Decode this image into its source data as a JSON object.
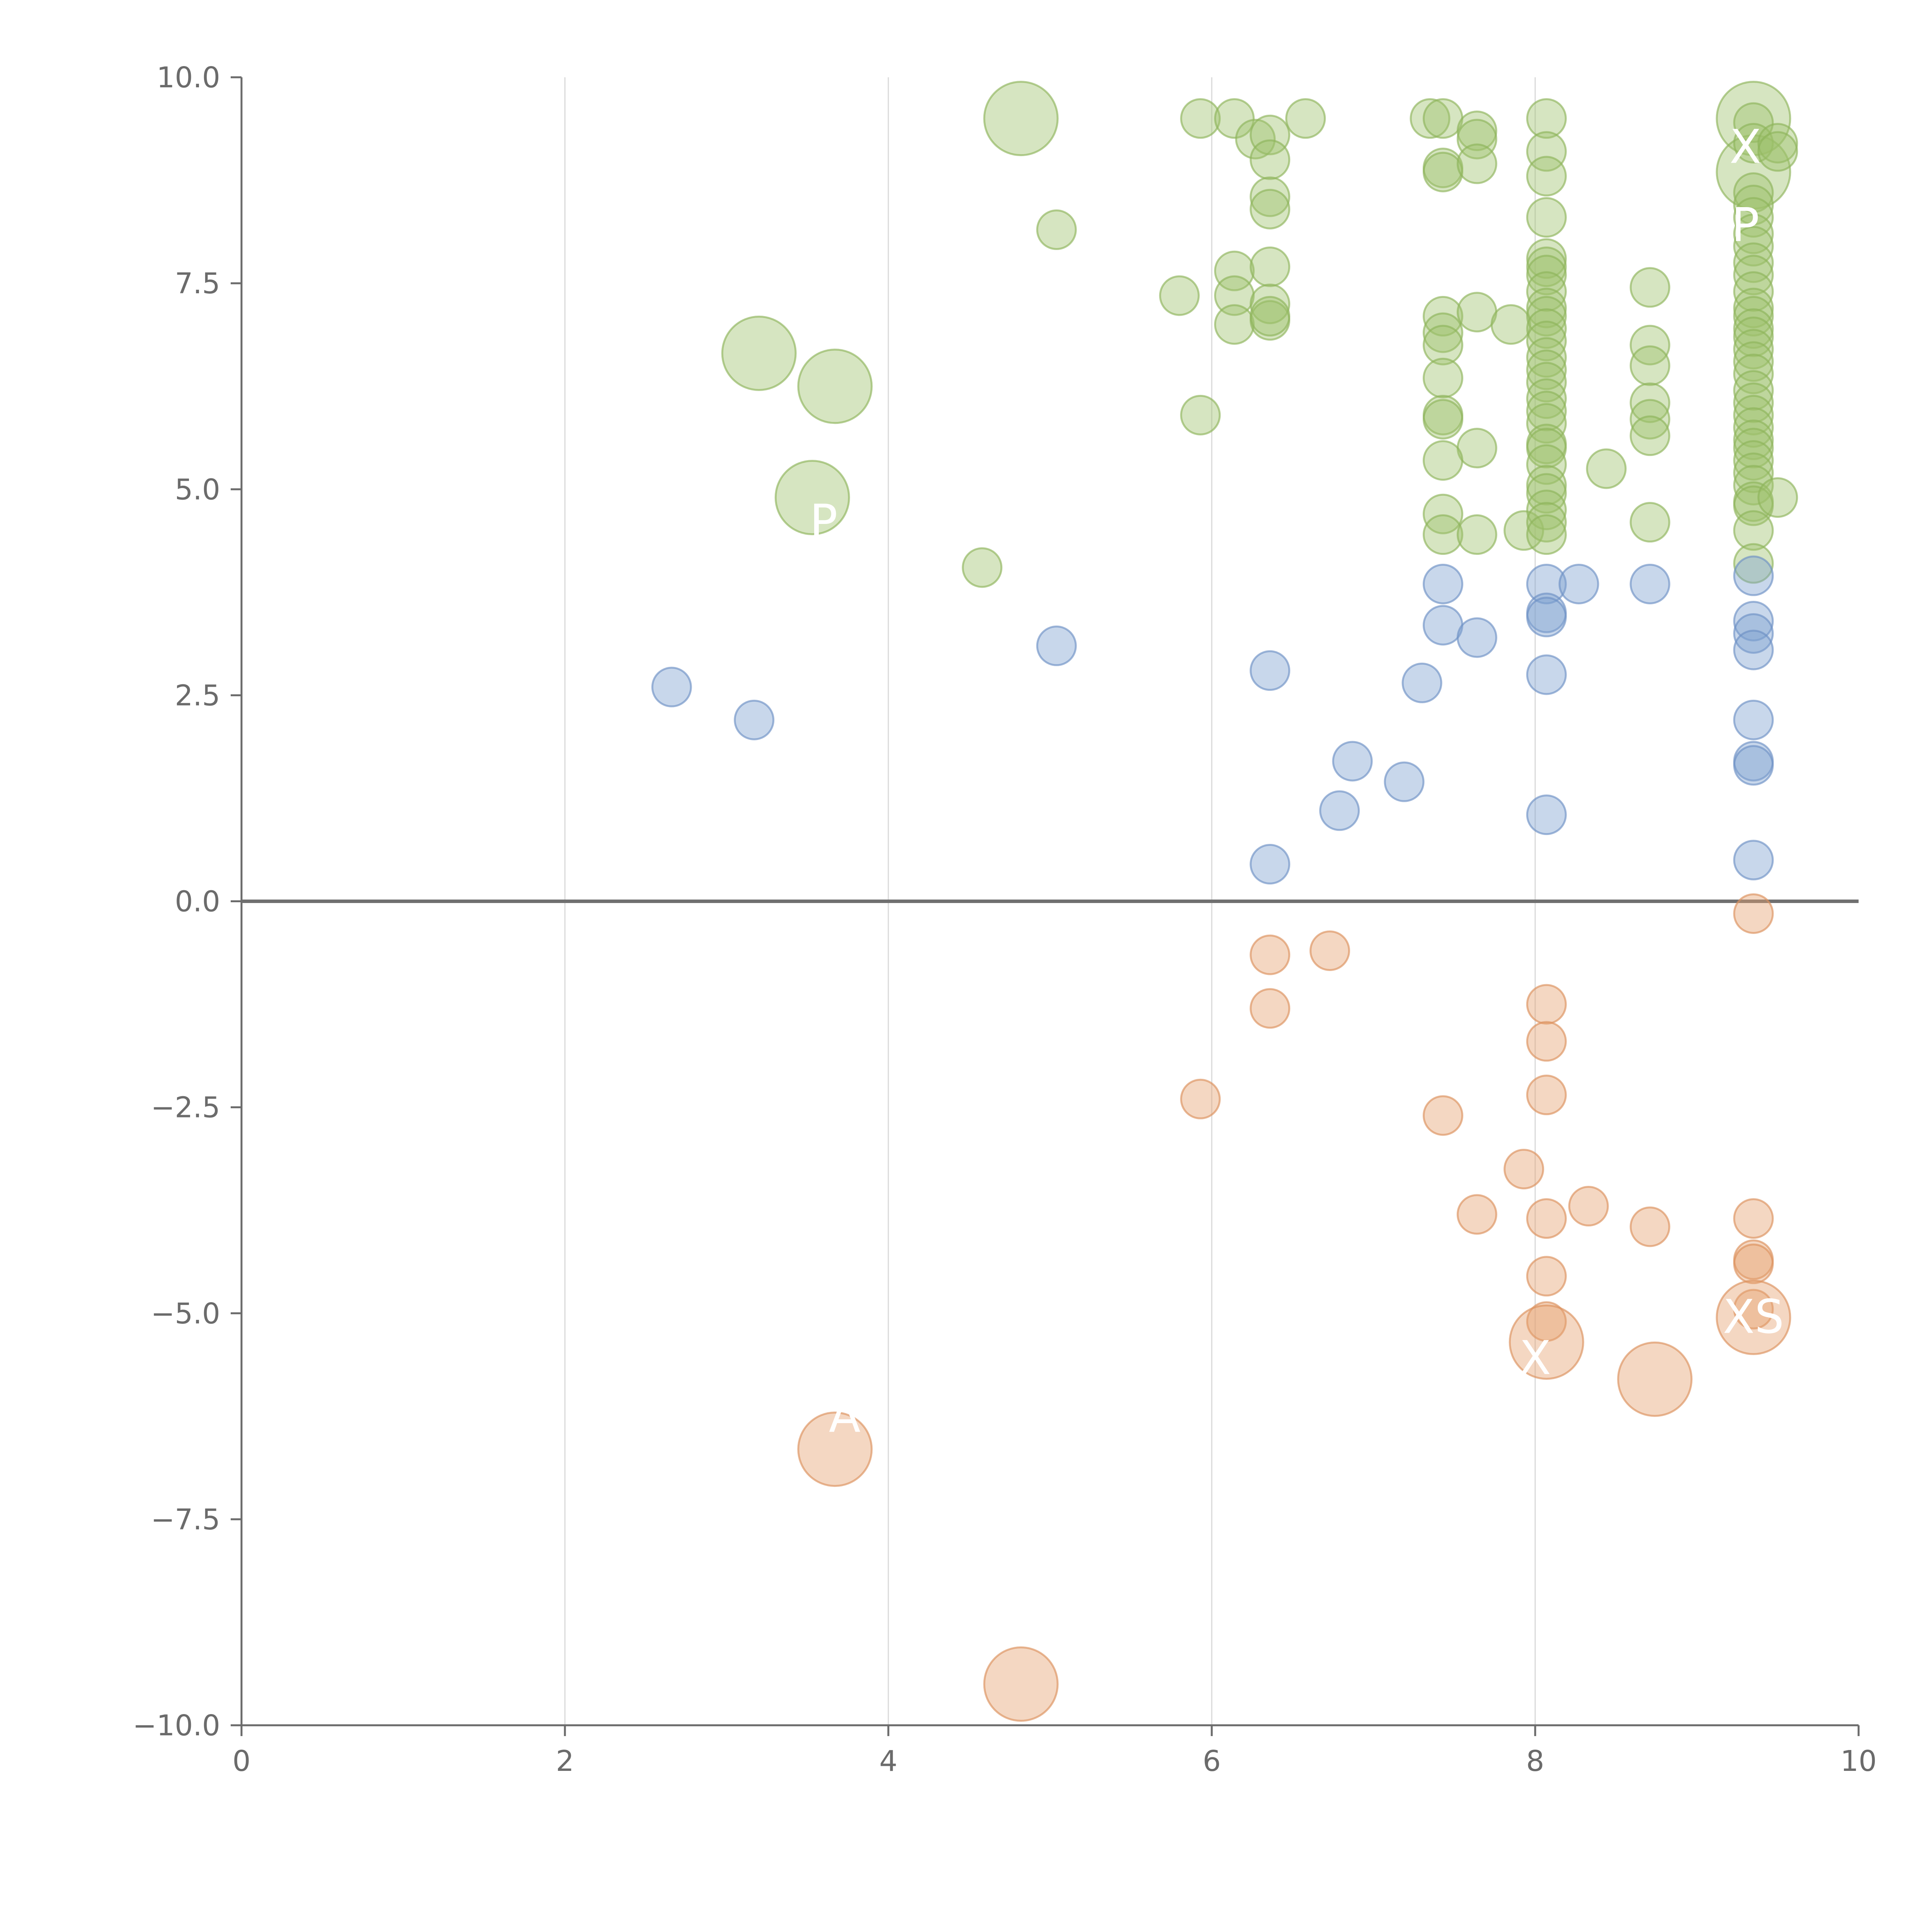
{
  "chart_data": {
    "type": "scatter",
    "title": "",
    "xlabel": "",
    "ylabel": "",
    "xlim": [
      0,
      10
    ],
    "ylim": [
      -10,
      10
    ],
    "x_ticks": [
      "0",
      "2",
      "4",
      "6",
      "8",
      "10"
    ],
    "y_ticks": [
      "10.0",
      "7.5",
      "5.0",
      "2.5",
      "0.0",
      "−2.5",
      "−5.0",
      "−7.5",
      "−10.0"
    ],
    "x_tick_values": [
      0,
      2,
      4,
      6,
      8,
      10
    ],
    "y_tick_values": [
      10,
      7.5,
      5,
      2.5,
      0,
      -2.5,
      -5,
      -7.5,
      -10
    ],
    "grid": "vertical",
    "zero_line": true,
    "legend": "none",
    "colors": {
      "green_fill": "#9dc16b",
      "green_stroke": "#8db35a",
      "blue_fill": "#7b9fcf",
      "blue_stroke": "#6d91c4",
      "orange_fill": "#e4a06e",
      "orange_stroke": "#db915c"
    },
    "series": [
      {
        "name": "green",
        "color": "green",
        "points": [
          [
            4.82,
            9.5,
            2
          ],
          [
            5.04,
            8.15,
            1
          ],
          [
            5.93,
            9.5,
            1
          ],
          [
            6.14,
            9.5,
            1
          ],
          [
            6.27,
            9.25,
            1
          ],
          [
            6.36,
            9.3,
            1
          ],
          [
            6.36,
            9.0,
            1
          ],
          [
            6.58,
            9.5,
            1
          ],
          [
            6.36,
            8.55,
            1
          ],
          [
            6.36,
            8.4,
            1
          ],
          [
            6.14,
            7.65,
            1
          ],
          [
            6.36,
            7.7,
            1
          ],
          [
            5.8,
            7.35,
            1
          ],
          [
            6.14,
            7.35,
            1
          ],
          [
            6.36,
            7.25,
            1
          ],
          [
            6.14,
            7.0,
            1
          ],
          [
            6.36,
            7.05,
            1
          ],
          [
            6.36,
            7.1,
            1
          ],
          [
            5.93,
            5.9,
            1
          ],
          [
            4.58,
            4.05,
            1
          ],
          [
            3.2,
            6.65,
            2
          ],
          [
            3.67,
            6.25,
            2
          ],
          [
            3.53,
            4.9,
            2
          ],
          [
            7.35,
            9.5,
            1
          ],
          [
            7.43,
            9.5,
            1
          ],
          [
            7.43,
            8.9,
            1
          ],
          [
            7.43,
            8.85,
            1
          ],
          [
            7.64,
            9.35,
            1
          ],
          [
            7.64,
            9.25,
            1
          ],
          [
            7.64,
            8.95,
            1
          ],
          [
            7.43,
            7.1,
            1
          ],
          [
            7.43,
            6.9,
            1
          ],
          [
            7.43,
            6.75,
            1
          ],
          [
            7.64,
            7.15,
            1
          ],
          [
            7.85,
            7.0,
            1
          ],
          [
            7.43,
            6.35,
            1
          ],
          [
            7.43,
            5.9,
            1
          ],
          [
            7.43,
            5.85,
            1
          ],
          [
            7.64,
            5.5,
            1
          ],
          [
            7.43,
            5.35,
            1
          ],
          [
            7.43,
            4.7,
            1
          ],
          [
            7.43,
            4.45,
            1
          ],
          [
            7.64,
            4.45,
            1
          ],
          [
            7.93,
            4.5,
            1
          ],
          [
            8.07,
            9.5,
            1
          ],
          [
            8.07,
            9.1,
            1
          ],
          [
            8.07,
            8.8,
            1
          ],
          [
            8.07,
            8.3,
            1
          ],
          [
            8.07,
            7.8,
            1
          ],
          [
            8.07,
            7.7,
            1
          ],
          [
            8.07,
            7.6,
            1
          ],
          [
            8.07,
            7.4,
            1
          ],
          [
            8.07,
            7.2,
            1
          ],
          [
            8.07,
            7.1,
            1
          ],
          [
            8.07,
            6.95,
            1
          ],
          [
            8.07,
            6.8,
            1
          ],
          [
            8.07,
            6.6,
            1
          ],
          [
            8.07,
            6.45,
            1
          ],
          [
            8.07,
            6.3,
            1
          ],
          [
            8.07,
            6.1,
            1
          ],
          [
            8.07,
            5.95,
            1
          ],
          [
            8.07,
            5.8,
            1
          ],
          [
            8.07,
            5.55,
            1
          ],
          [
            8.07,
            5.5,
            1
          ],
          [
            8.07,
            5.3,
            1
          ],
          [
            8.07,
            5.05,
            1
          ],
          [
            8.07,
            4.95,
            1
          ],
          [
            8.07,
            4.75,
            1
          ],
          [
            8.07,
            4.6,
            1
          ],
          [
            8.07,
            4.45,
            1
          ],
          [
            8.44,
            5.25,
            1
          ],
          [
            8.71,
            7.45,
            1
          ],
          [
            8.71,
            6.75,
            1
          ],
          [
            8.71,
            6.5,
            1
          ],
          [
            8.71,
            6.05,
            1
          ],
          [
            8.71,
            5.85,
            1
          ],
          [
            8.71,
            5.65,
            1
          ],
          [
            8.71,
            4.6,
            1
          ],
          [
            9.35,
            9.5,
            2
          ],
          [
            9.35,
            8.85,
            2
          ],
          [
            9.35,
            9.45,
            1
          ],
          [
            9.35,
            9.2,
            1
          ],
          [
            9.5,
            9.2,
            1
          ],
          [
            9.5,
            9.1,
            1
          ],
          [
            9.35,
            8.6,
            1
          ],
          [
            9.35,
            8.45,
            1
          ],
          [
            9.35,
            8.3,
            1
          ],
          [
            9.35,
            8.1,
            1
          ],
          [
            9.35,
            7.95,
            1
          ],
          [
            9.35,
            7.75,
            1
          ],
          [
            9.35,
            7.6,
            1
          ],
          [
            9.35,
            7.4,
            1
          ],
          [
            9.35,
            7.2,
            1
          ],
          [
            9.35,
            7.1,
            1
          ],
          [
            9.35,
            6.95,
            1
          ],
          [
            9.35,
            6.85,
            1
          ],
          [
            9.35,
            6.7,
            1
          ],
          [
            9.35,
            6.55,
            1
          ],
          [
            9.35,
            6.4,
            1
          ],
          [
            9.35,
            6.2,
            1
          ],
          [
            9.35,
            6.05,
            1
          ],
          [
            9.35,
            5.9,
            1
          ],
          [
            9.35,
            5.75,
            1
          ],
          [
            9.35,
            5.6,
            1
          ],
          [
            9.35,
            5.5,
            1
          ],
          [
            9.35,
            5.35,
            1
          ],
          [
            9.35,
            5.2,
            1
          ],
          [
            9.35,
            5.05,
            1
          ],
          [
            9.35,
            4.85,
            1
          ],
          [
            9.35,
            4.8,
            1
          ],
          [
            9.5,
            4.9,
            1
          ],
          [
            9.35,
            4.5,
            1
          ],
          [
            9.35,
            4.1,
            1
          ]
        ]
      },
      {
        "name": "blue",
        "color": "blue",
        "points": [
          [
            2.66,
            2.6,
            1
          ],
          [
            3.17,
            2.2,
            1
          ],
          [
            5.04,
            3.1,
            1
          ],
          [
            6.36,
            2.8,
            1
          ],
          [
            6.36,
            0.45,
            1
          ],
          [
            6.79,
            1.1,
            1
          ],
          [
            6.87,
            1.7,
            1
          ],
          [
            7.19,
            1.45,
            1
          ],
          [
            7.3,
            2.65,
            1
          ],
          [
            7.43,
            3.85,
            1
          ],
          [
            7.43,
            3.35,
            1
          ],
          [
            7.64,
            3.2,
            1
          ],
          [
            8.07,
            3.85,
            1
          ],
          [
            8.07,
            3.5,
            1
          ],
          [
            8.07,
            3.45,
            1
          ],
          [
            8.07,
            2.75,
            1
          ],
          [
            8.07,
            1.05,
            1
          ],
          [
            8.27,
            3.85,
            1
          ],
          [
            8.71,
            3.85,
            1
          ],
          [
            9.35,
            3.95,
            1
          ],
          [
            9.35,
            3.4,
            1
          ],
          [
            9.35,
            3.25,
            1
          ],
          [
            9.35,
            3.05,
            1
          ],
          [
            9.35,
            2.2,
            1
          ],
          [
            9.35,
            1.7,
            1
          ],
          [
            9.35,
            1.65,
            1
          ],
          [
            9.35,
            0.5,
            1
          ]
        ]
      },
      {
        "name": "orange",
        "color": "orange",
        "points": [
          [
            3.67,
            -6.65,
            2
          ],
          [
            4.82,
            -9.5,
            2
          ],
          [
            5.93,
            -2.4,
            1
          ],
          [
            6.36,
            -0.65,
            1
          ],
          [
            6.36,
            -1.3,
            1
          ],
          [
            6.73,
            -0.6,
            1
          ],
          [
            7.43,
            -2.6,
            1
          ],
          [
            7.64,
            -3.8,
            1
          ],
          [
            7.93,
            -3.25,
            1
          ],
          [
            8.07,
            -1.25,
            1
          ],
          [
            8.07,
            -1.7,
            1
          ],
          [
            8.07,
            -2.35,
            1
          ],
          [
            8.07,
            -3.85,
            1
          ],
          [
            8.07,
            -4.55,
            1
          ],
          [
            8.07,
            -5.1,
            1
          ],
          [
            8.07,
            -5.35,
            2
          ],
          [
            8.33,
            -3.7,
            1
          ],
          [
            8.71,
            -3.95,
            1
          ],
          [
            8.74,
            -5.8,
            2
          ],
          [
            9.35,
            -0.15,
            1
          ],
          [
            9.35,
            -3.85,
            1
          ],
          [
            9.35,
            -4.35,
            1
          ],
          [
            9.35,
            -4.4,
            1
          ],
          [
            9.35,
            -4.95,
            1
          ],
          [
            9.35,
            -5.05,
            2
          ]
        ]
      }
    ],
    "annotations": [
      {
        "text": "XS",
        "x": 9.35,
        "y": -5.05
      },
      {
        "text": "X",
        "x": 8.0,
        "y": -5.55
      },
      {
        "text": "P",
        "x": 9.3,
        "y": 8.2
      },
      {
        "text": "X",
        "x": 9.3,
        "y": 9.15
      },
      {
        "text": "P",
        "x": 3.6,
        "y": 4.6
      },
      {
        "text": "A",
        "x": 3.73,
        "y": -6.25
      }
    ]
  }
}
